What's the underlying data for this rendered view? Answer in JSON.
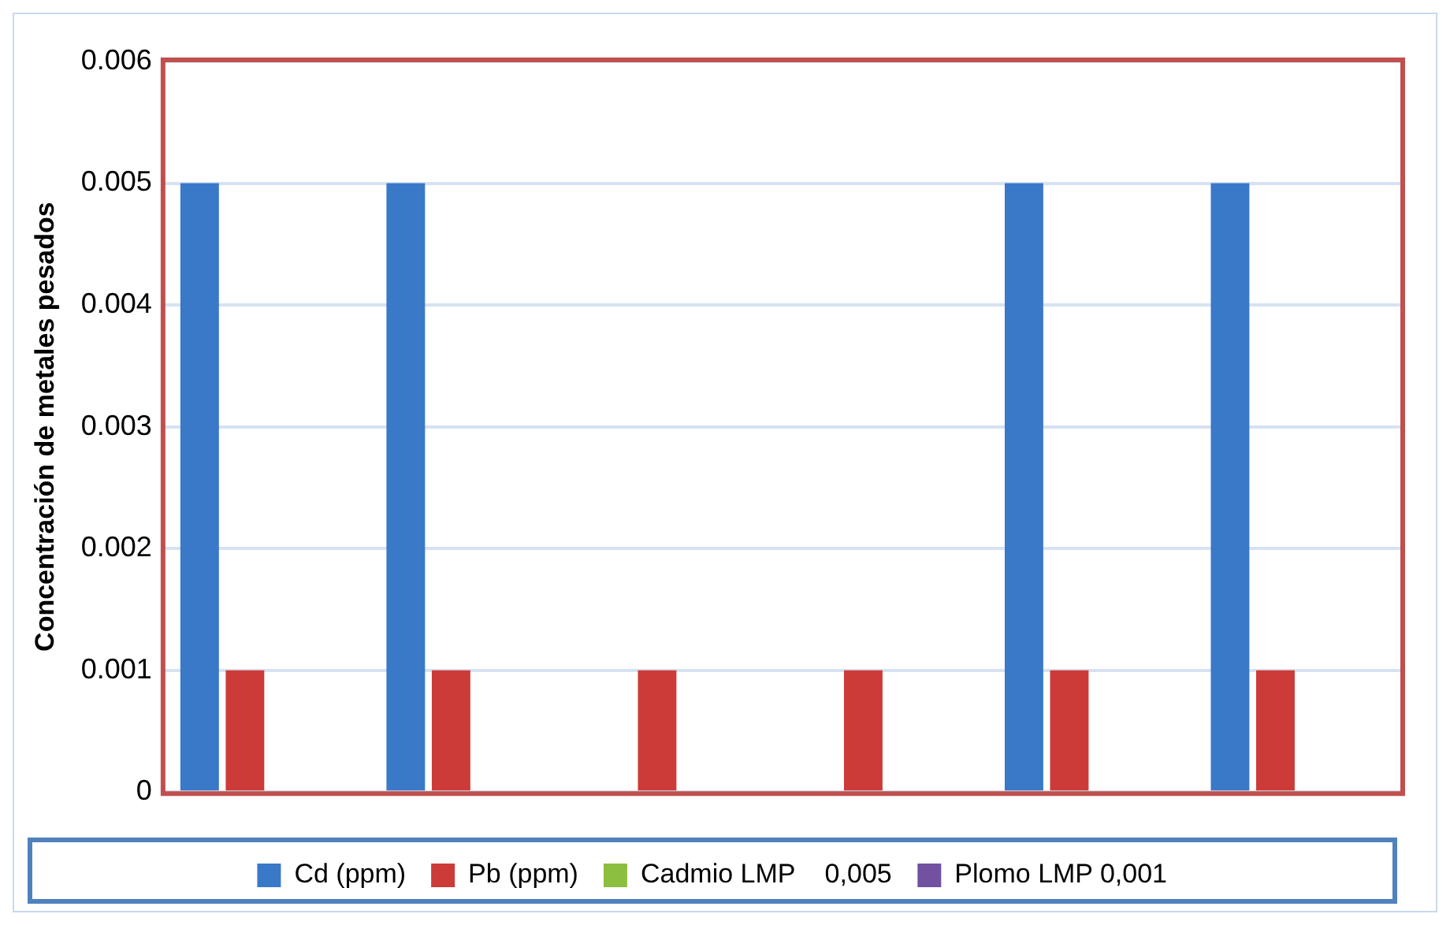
{
  "chart_data": {
    "type": "bar",
    "ylabel": "Concentración de metales pesados",
    "categories": [
      null,
      null,
      null,
      null,
      null,
      null
    ],
    "series": [
      {
        "name": "Cd (ppm)",
        "color": "#3a78c8",
        "values": [
          0.005,
          0.005,
          null,
          null,
          0.005,
          0.005
        ]
      },
      {
        "name": "Pb (ppm)",
        "color": "#cc3b38",
        "values": [
          0.001,
          0.001,
          0.001,
          0.001,
          0.001,
          0.001
        ]
      },
      {
        "name": "Cadmio LMP    0,005",
        "color": "#8cbf3f",
        "values": [
          null,
          null,
          null,
          null,
          null,
          null
        ]
      },
      {
        "name": "Plomo LMP 0,001",
        "color": "#7251a0",
        "values": [
          null,
          null,
          null,
          null,
          null,
          null
        ]
      }
    ],
    "ylim": [
      0,
      0.006
    ],
    "yticks": [
      0,
      0.001,
      0.002,
      0.003,
      0.004,
      0.005,
      0.006
    ],
    "grid": "y",
    "legend": "bottom"
  }
}
